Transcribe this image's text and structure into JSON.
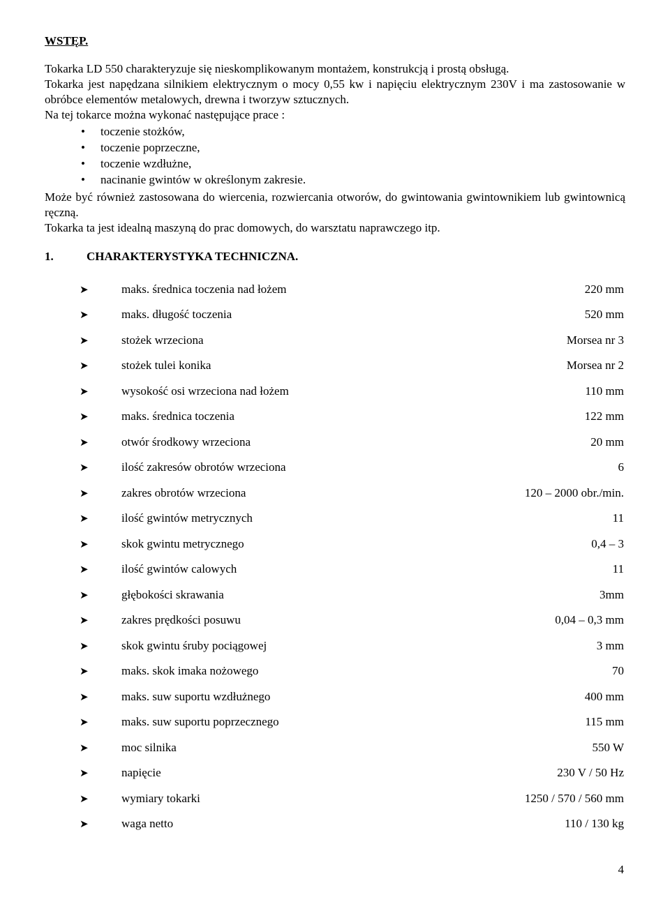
{
  "heading": "WSTĘP.",
  "intro": {
    "p1": "Tokarka LD 550 charakteryzuje się nieskomplikowanym montażem, konstrukcją i prostą obsługą.",
    "p2": "Tokarka jest napędzana silnikiem elektrycznym o mocy 0,55 kw i napięciu elektrycznym 230V i ma zastosowanie w obróbce elementów metalowych, drewna i tworzyw sztucznych.",
    "p3": "Na tej tokarce można wykonać następujące prace :",
    "bullets": [
      "toczenie stożków,",
      "toczenie poprzeczne,",
      "toczenie wzdłużne,",
      "nacinanie gwintów w określonym zakresie."
    ],
    "p4": "Może być również zastosowana do wiercenia, rozwiercania otworów, do gwintowania gwintownikiem lub gwintownicą ręczną.",
    "p5": "Tokarka ta jest idealną maszyną do prac domowych, do warsztatu naprawczego itp."
  },
  "section": {
    "num": "1.",
    "title": "CHARAKTERYSTYKA TECHNICZNA."
  },
  "spec_marker": "➤",
  "specs": [
    {
      "label": "maks. średnica toczenia nad łożem",
      "value": "220 mm"
    },
    {
      "label": "maks. długość toczenia",
      "value": "520 mm"
    },
    {
      "label": "stożek wrzeciona",
      "value": "Morsea nr 3"
    },
    {
      "label": "stożek tulei konika",
      "value": "Morsea nr 2"
    },
    {
      "label": "wysokość osi wrzeciona nad łożem",
      "value": "110 mm"
    },
    {
      "label": "maks. średnica toczenia",
      "value": "122 mm"
    },
    {
      "label": "otwór środkowy wrzeciona",
      "value": "20 mm"
    },
    {
      "label": "ilość zakresów obrotów wrzeciona",
      "value": "6"
    },
    {
      "label": "zakres obrotów wrzeciona",
      "value": "120 – 2000 obr./min."
    },
    {
      "label": "ilość gwintów metrycznych",
      "value": "11"
    },
    {
      "label": "skok gwintu metrycznego",
      "value": "0,4 – 3"
    },
    {
      "label": "ilość gwintów calowych",
      "value": "11"
    },
    {
      "label": "głębokości skrawania",
      "value": "3mm"
    },
    {
      "label": "zakres prędkości posuwu",
      "value": "0,04 – 0,3 mm"
    },
    {
      "label": "skok gwintu śruby pociągowej",
      "value": "3 mm"
    },
    {
      "label": "maks. skok imaka nożowego",
      "value": "70"
    },
    {
      "label": "maks. suw suportu wzdłużnego",
      "value": "400 mm"
    },
    {
      "label": "maks. suw suportu poprzecznego",
      "value": "115 mm"
    },
    {
      "label": "moc silnika",
      "value": "550 W"
    },
    {
      "label": "napięcie",
      "value": "230 V / 50 Hz"
    },
    {
      "label": "wymiary tokarki",
      "value": "1250 / 570 / 560 mm"
    },
    {
      "label": "waga netto",
      "value": "110 / 130 kg"
    }
  ],
  "page_number": "4"
}
